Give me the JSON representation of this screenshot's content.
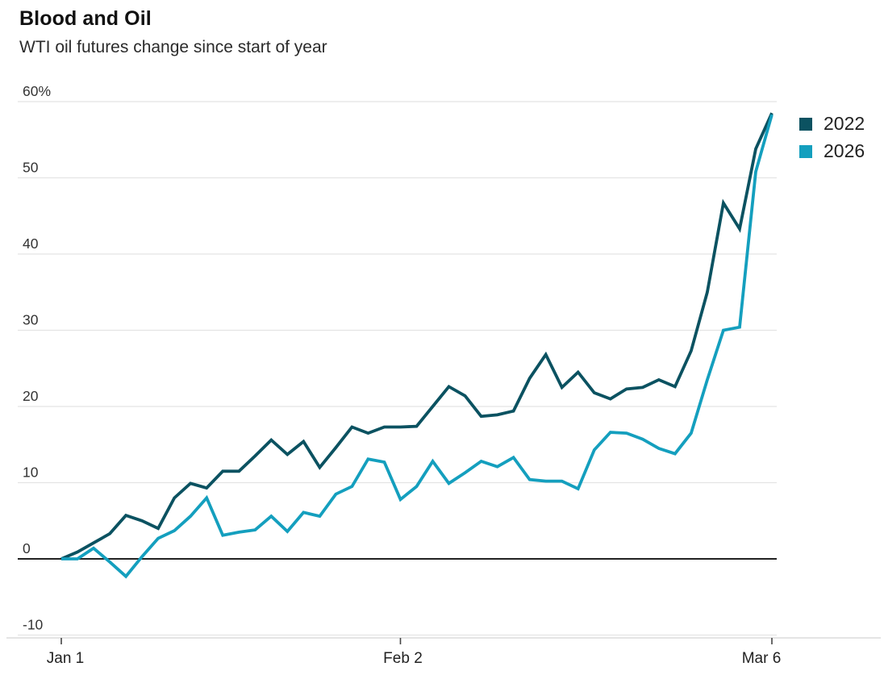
{
  "header": {
    "title": "Blood and Oil",
    "subtitle": "WTI oil futures change since start of year"
  },
  "legend": {
    "items": [
      {
        "label": "2022",
        "color": "#0b5261"
      },
      {
        "label": "2026",
        "color": "#149fbe"
      }
    ]
  },
  "chart_data": {
    "type": "line",
    "title": "Blood and Oil",
    "subtitle": "WTI oil futures change since start of year",
    "unit": "percent change",
    "grid": "horizontal",
    "legend_position": "right",
    "ylim": [
      -10,
      60
    ],
    "y_axis": {
      "ticks": [
        {
          "value": 60,
          "label": "60%"
        },
        {
          "value": 50,
          "label": "50"
        },
        {
          "value": 40,
          "label": "40"
        },
        {
          "value": 30,
          "label": "30"
        },
        {
          "value": 20,
          "label": "20"
        },
        {
          "value": 10,
          "label": "10"
        },
        {
          "value": 0,
          "label": "0"
        },
        {
          "value": -10,
          "label": "-10"
        }
      ],
      "zero_baseline": true
    },
    "x_axis": {
      "start_label": "Jan 1",
      "end_label": "Mar 6",
      "ticks": [
        {
          "index": 0,
          "label": "Jan 1"
        },
        {
          "index": 21,
          "label": "Feb 2"
        },
        {
          "index": 44,
          "label": "Mar 6"
        }
      ]
    },
    "series": [
      {
        "name": "2022",
        "color": "#0b5261",
        "values": [
          0,
          0.9,
          2.1,
          3.3,
          5.7,
          5.0,
          4.0,
          8.0,
          9.9,
          9.3,
          11.5,
          11.5,
          13.5,
          15.6,
          13.7,
          15.4,
          12.0,
          14.6,
          17.3,
          16.5,
          17.3,
          17.3,
          17.4,
          20.0,
          22.6,
          21.4,
          18.7,
          18.9,
          19.4,
          23.7,
          26.8,
          22.5,
          24.5,
          21.8,
          21.0,
          22.3,
          22.5,
          23.5,
          22.6,
          27.3,
          35.0,
          46.7,
          43.3,
          53.8,
          58.5
        ]
      },
      {
        "name": "2026",
        "color": "#149fbe",
        "values": [
          0,
          0.0,
          1.4,
          -0.4,
          -2.3,
          0.3,
          2.7,
          3.7,
          5.6,
          8.0,
          3.1,
          3.5,
          3.8,
          5.6,
          3.6,
          6.1,
          5.6,
          8.5,
          9.5,
          13.1,
          12.7,
          7.8,
          9.5,
          12.8,
          9.9,
          11.3,
          12.8,
          12.1,
          13.3,
          10.4,
          10.2,
          10.2,
          9.2,
          14.3,
          16.6,
          16.5,
          15.7,
          14.5,
          13.8,
          16.5,
          23.5,
          30.0,
          30.4,
          50.8,
          58.3
        ]
      }
    ]
  }
}
